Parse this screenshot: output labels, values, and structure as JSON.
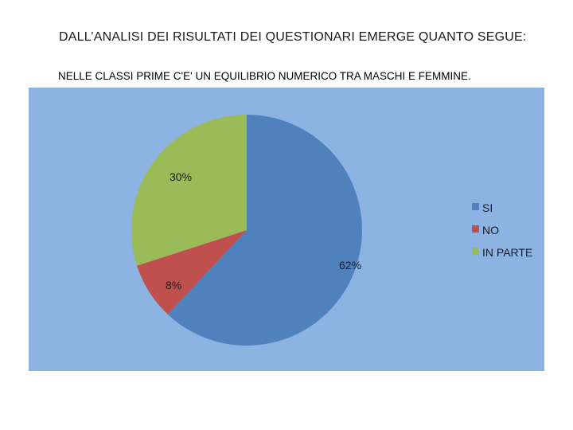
{
  "header": {
    "title": "DALL’ANALISI DEI RISULTATI DEI QUESTIONARI EMERGE QUANTO SEGUE:",
    "subtitle": "NELLE CLASSI PRIME  C'E' UN EQUILIBRIO NUMERICO TRA MASCHI E FEMMINE."
  },
  "colors": {
    "plot_background": "#8db3e2",
    "si": "#4f81bd",
    "no": "#c0504d",
    "in_parte": "#9bbb59"
  },
  "chart_data": {
    "type": "pie",
    "title": "",
    "start_angle_deg": 0,
    "direction": "clockwise",
    "legend_position": "right",
    "slices": [
      {
        "label": "SI",
        "value": 62,
        "display": "62%",
        "color": "#4f81bd"
      },
      {
        "label": "NO",
        "value": 8,
        "display": "8%",
        "color": "#c0504d"
      },
      {
        "label": "IN PARTE",
        "value": 30,
        "display": "30%",
        "color": "#9bbb59"
      }
    ]
  }
}
